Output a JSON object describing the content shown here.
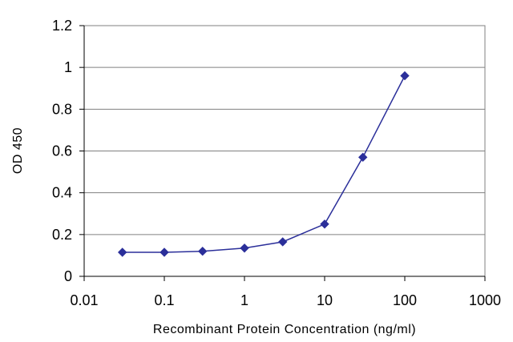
{
  "chart_data": {
    "type": "line",
    "title": "",
    "xlabel": "Recombinant Protein Concentration (ng/ml)",
    "ylabel": "OD 450",
    "x_scale": "log",
    "xlim": [
      0.01,
      1000
    ],
    "ylim": [
      0,
      1.2
    ],
    "x_ticks": [
      "0.01",
      "0.1",
      "1",
      "10",
      "100",
      "1000"
    ],
    "x_tick_values": [
      0.01,
      0.1,
      1,
      10,
      100,
      1000
    ],
    "y_ticks": [
      "0",
      "0.2",
      "0.4",
      "0.6",
      "0.8",
      "1",
      "1.2"
    ],
    "y_tick_values": [
      0,
      0.2,
      0.4,
      0.6,
      0.8,
      1,
      1.2
    ],
    "grid": "horizontal",
    "series": [
      {
        "x": [
          0.03,
          0.1,
          0.3,
          1,
          3,
          10,
          30,
          100
        ],
        "y": [
          0.115,
          0.115,
          0.12,
          0.135,
          0.165,
          0.25,
          0.57,
          0.96
        ],
        "color": "#2b2f9a",
        "marker": "diamond"
      }
    ]
  }
}
